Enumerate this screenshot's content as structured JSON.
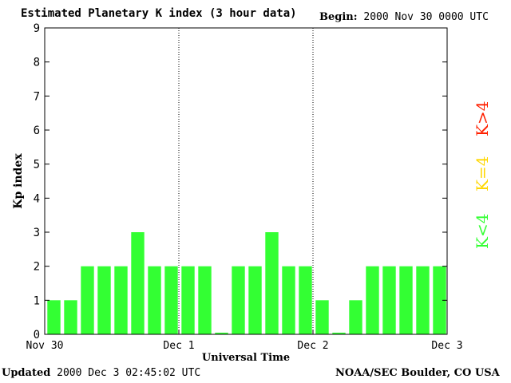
{
  "header": {
    "title": "Estimated Planetary K index (3 hour data)",
    "begin_label": "Begin:",
    "begin_value": "2000 Nov 30 0000 UTC"
  },
  "footer": {
    "updated_label": "Updated",
    "updated_value": "2000 Dec  3 02:45:02 UTC",
    "credit": "NOAA/SEC Boulder, CO USA"
  },
  "legend": {
    "k_gt_4": "K>4",
    "k_eq_4": "K=4",
    "k_lt_4": "K<4"
  },
  "colors": {
    "k_gt_4": "#ff2000",
    "k_eq_4": "#ffd700",
    "k_lt_4": "#33ff33"
  },
  "chart_data": {
    "type": "bar",
    "title": "Estimated Planetary K index (3 hour data)",
    "xlabel": "Universal Time",
    "ylabel": "Kp index",
    "ylim": [
      0,
      9
    ],
    "yticks": [
      "0",
      "1",
      "2",
      "3",
      "4",
      "5",
      "6",
      "7",
      "8",
      "9"
    ],
    "xticks": [
      "Nov 30",
      "Dec 1",
      "Dec 2",
      "Dec 3"
    ],
    "day_separators": [
      "Dec 1",
      "Dec 2"
    ],
    "series": [
      {
        "values": [
          1,
          1,
          2,
          2,
          2,
          3,
          2,
          2,
          2,
          2,
          0.05,
          2,
          2,
          3,
          2,
          2,
          1,
          0.05,
          1,
          2,
          2,
          2,
          2,
          2
        ]
      }
    ]
  }
}
